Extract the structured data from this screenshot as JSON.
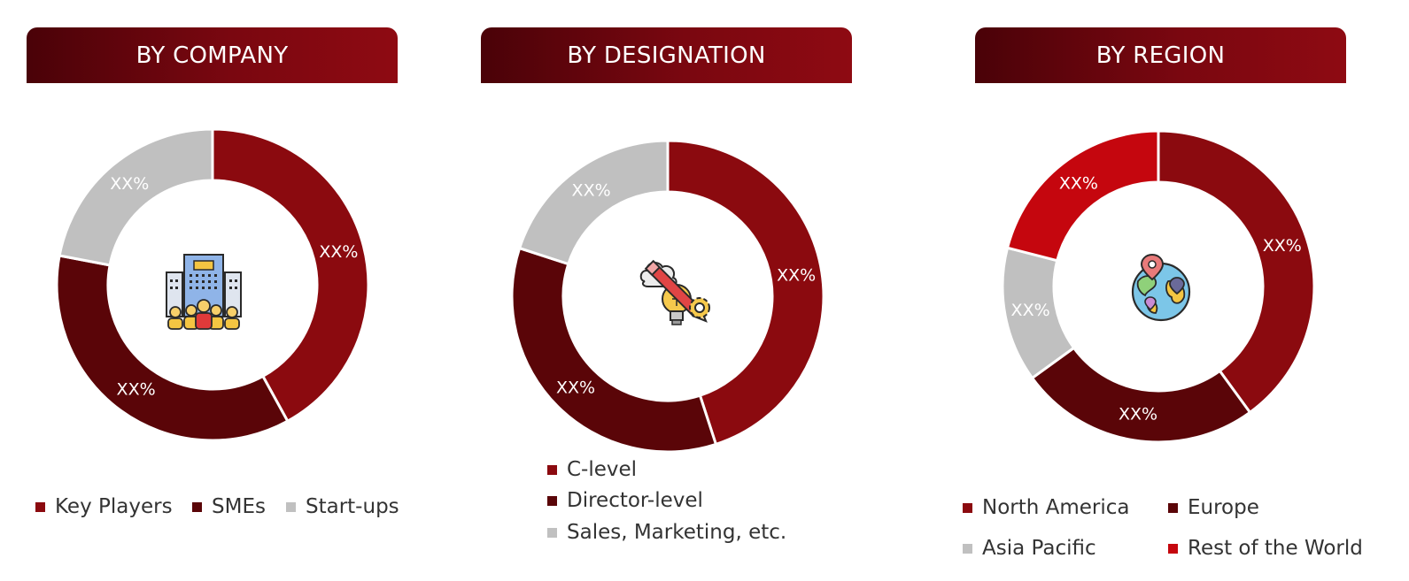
{
  "colors": {
    "deep_red": "#8b0a0f",
    "dark_maroon": "#5a0508",
    "light_gray": "#c0c0c0",
    "bright_red": "#c5060e"
  },
  "chart_data": [
    {
      "type": "pie",
      "title": "BY COMPANY",
      "center_icon": "office-building-team-icon",
      "slices": [
        {
          "label": "Key Players",
          "value": 42,
          "display": "XX%",
          "color": "#8b0a0f"
        },
        {
          "label": "SMEs",
          "value": 36,
          "display": "XX%",
          "color": "#5a0508"
        },
        {
          "label": "Start-ups",
          "value": 22,
          "display": "XX%",
          "color": "#c0c0c0"
        }
      ],
      "legend": [
        "Key Players",
        "SMEs",
        "Start-ups"
      ]
    },
    {
      "type": "pie",
      "title": "BY DESIGNATION",
      "center_icon": "idea-pencil-gear-icon",
      "slices": [
        {
          "label": "C-level",
          "value": 45,
          "display": "XX%",
          "color": "#8b0a0f"
        },
        {
          "label": "Director-level",
          "value": 35,
          "display": "XX%",
          "color": "#5a0508"
        },
        {
          "label": "Sales, Marketing, etc.",
          "value": 20,
          "display": "XX%",
          "color": "#c0c0c0"
        }
      ],
      "legend": [
        "C-level",
        "Director-level",
        "Sales, Marketing, etc."
      ]
    },
    {
      "type": "pie",
      "title": "BY REGION",
      "center_icon": "globe-location-pins-icon",
      "slices": [
        {
          "label": "North America",
          "value": 40,
          "display": "XX%",
          "color": "#8b0a0f"
        },
        {
          "label": "Europe",
          "value": 25,
          "display": "XX%",
          "color": "#5a0508"
        },
        {
          "label": "Asia Pacific",
          "value": 14,
          "display": "XX%",
          "color": "#c0c0c0"
        },
        {
          "label": "Rest of the World",
          "value": 21,
          "display": "XX%",
          "color": "#c5060e"
        }
      ],
      "legend": [
        "North America",
        "Europe",
        "Asia Pacific",
        "Rest of the World"
      ]
    }
  ]
}
